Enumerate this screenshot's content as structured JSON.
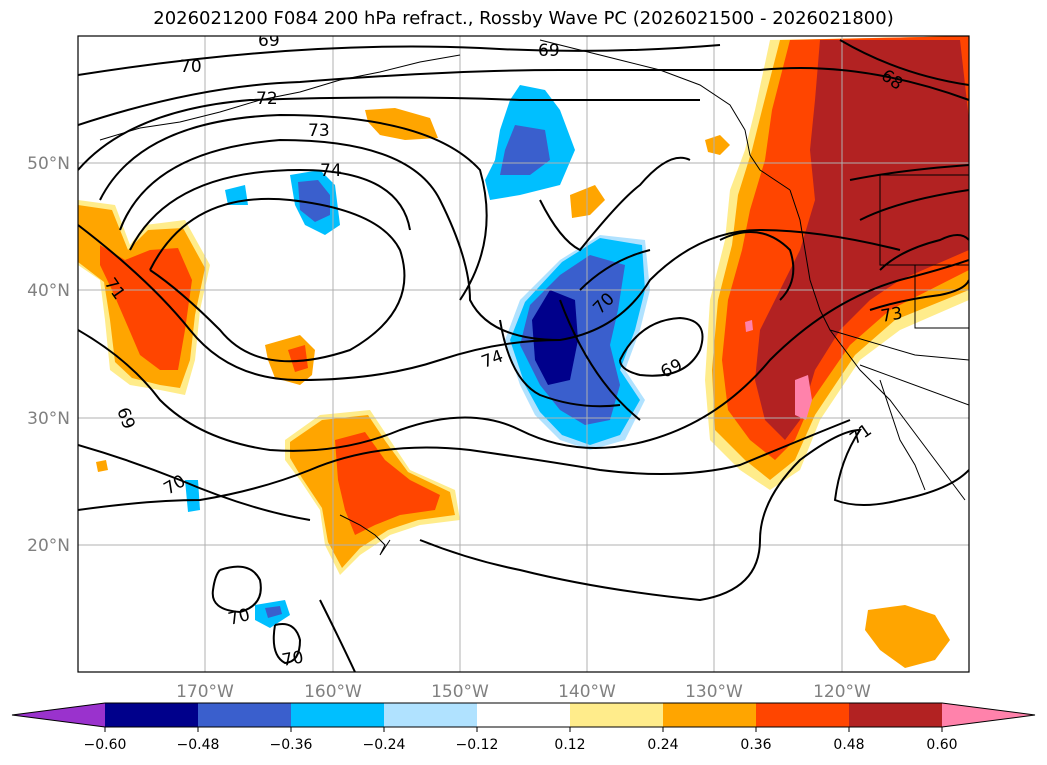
{
  "title": "2026021200 F084 200 hPa refract., Rossby Wave PC (2026021500 - 2026021800)",
  "map": {
    "lon_ticks": [
      "170°W",
      "160°W",
      "150°W",
      "140°W",
      "130°W",
      "120°W"
    ],
    "lat_ticks": [
      "50°N",
      "40°N",
      "30°N",
      "20°N"
    ],
    "contour_labels": [
      "69",
      "69",
      "70",
      "72",
      "73",
      "74",
      "71",
      "69",
      "70",
      "70",
      "70",
      "74",
      "70",
      "69",
      "68",
      "73",
      "71"
    ]
  },
  "colorbar": {
    "ticks": [
      "−0.60",
      "−0.48",
      "−0.36",
      "−0.24",
      "−0.12",
      "0.12",
      "0.24",
      "0.36",
      "0.48",
      "0.60"
    ],
    "colors": [
      "#9a32cd",
      "#00008b",
      "#3a5fcd",
      "#00bfff",
      "#b0e2ff",
      "#ffffff",
      "#ffec8b",
      "#ffa500",
      "#ff4500",
      "#b22222",
      "#ff82ab"
    ]
  },
  "colors": {
    "neg_strong": "#00008b",
    "neg_mid": "#3a5fcd",
    "neg_light": "#00bfff",
    "neg_pale": "#b0e2ff",
    "pos_pale": "#ffec8b",
    "pos_light": "#ffa500",
    "pos_mid": "#ff4500",
    "pos_strong": "#b22222",
    "pos_max": "#ff82ab"
  }
}
